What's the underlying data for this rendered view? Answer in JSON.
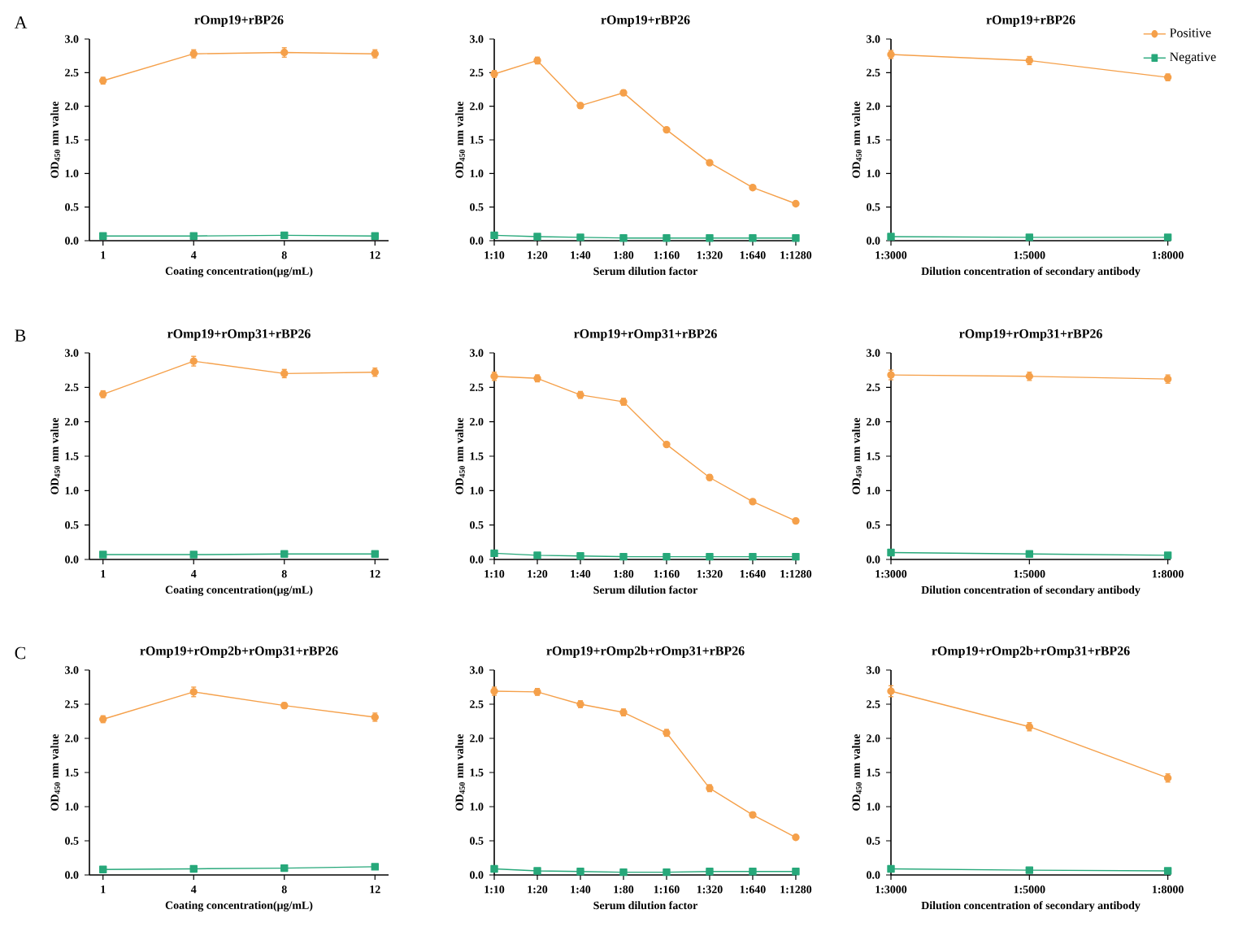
{
  "chart_data": [
    {
      "type": "line",
      "title": "rOmp19+rBP26",
      "xlabel": "Coating concentration(μg/mL)",
      "ylabel": "OD$_{450}$ nm value",
      "annotations": [
        "A"
      ],
      "categories": [
        "1",
        "4",
        "8",
        "12"
      ],
      "ylim": [
        0,
        3
      ],
      "yticks": [
        {
          "value": 0,
          "label": "0.0"
        },
        {
          "value": 0.5,
          "label": "0.5"
        },
        {
          "value": 1,
          "label": "1.0"
        },
        {
          "value": 1.5,
          "label": "1.5"
        },
        {
          "value": 2,
          "label": "2.0"
        },
        {
          "value": 2.5,
          "label": "2.5"
        },
        {
          "value": 3,
          "label": "3.0"
        }
      ],
      "series": [
        {
          "color": "#f5a04a",
          "marker": "circle",
          "values": [
            2.38,
            2.78,
            2.8,
            2.78
          ],
          "errors": [
            0.05,
            0.06,
            0.07,
            0.06
          ]
        },
        {
          "color": "#27a87a",
          "marker": "square",
          "values": [
            0.07,
            0.07,
            0.08,
            0.07
          ]
        }
      ]
    },
    {
      "type": "line",
      "title": "rOmp19+rBP26",
      "xlabel": "Serum dilution factor",
      "ylabel": "OD$_{450}$ nm value",
      "categories": [
        "1:10",
        "1:20",
        "1:40",
        "1:80",
        "1:160",
        "1:320",
        "1:640",
        "1:1280"
      ],
      "ylim": [
        0,
        3
      ],
      "yticks": [
        {
          "value": 0,
          "label": "0.0"
        },
        {
          "value": 0.5,
          "label": "0.5"
        },
        {
          "value": 1,
          "label": "1.0"
        },
        {
          "value": 1.5,
          "label": "1.5"
        },
        {
          "value": 2,
          "label": "2.0"
        },
        {
          "value": 2.5,
          "label": "2.5"
        },
        {
          "value": 3,
          "label": "3.0"
        }
      ],
      "series": [
        {
          "color": "#f5a04a",
          "marker": "circle",
          "values": [
            2.48,
            2.68,
            2.01,
            2.2,
            1.65,
            1.16,
            0.79,
            0.55
          ],
          "errors": [
            0.05,
            0.05,
            0.04,
            0.04,
            0.03,
            0.03,
            0.03,
            0.03
          ]
        },
        {
          "color": "#27a87a",
          "marker": "square",
          "values": [
            0.08,
            0.06,
            0.05,
            0.04,
            0.04,
            0.04,
            0.04,
            0.04
          ]
        }
      ]
    },
    {
      "type": "line",
      "title": "rOmp19+rBP26",
      "xlabel": "Dilution concentration of secondary antibody",
      "ylabel": "OD$_{450}$ nm value",
      "legend": "top right",
      "categories": [
        "1:3000",
        "1:5000",
        "1:8000"
      ],
      "ylim": [
        0,
        3
      ],
      "yticks": [
        {
          "value": 0,
          "label": "0.0"
        },
        {
          "value": 0.5,
          "label": "0.5"
        },
        {
          "value": 1,
          "label": "1.0"
        },
        {
          "value": 1.5,
          "label": "1.5"
        },
        {
          "value": 2,
          "label": "2.0"
        },
        {
          "value": 2.5,
          "label": "2.5"
        },
        {
          "value": 3,
          "label": "3.0"
        }
      ],
      "series": [
        {
          "name": "Positive",
          "color": "#f5a04a",
          "marker": "circle",
          "values": [
            2.77,
            2.68,
            2.43
          ],
          "errors": [
            0.06,
            0.06,
            0.05
          ]
        },
        {
          "name": "Negative",
          "color": "#27a87a",
          "marker": "square",
          "values": [
            0.06,
            0.05,
            0.05
          ]
        }
      ]
    },
    {
      "type": "line",
      "title": "rOmp19+rOmp31+rBP26",
      "xlabel": "Coating concentration(μg/mL)",
      "ylabel": "OD$_{450}$ nm value",
      "annotations": [
        "B"
      ],
      "categories": [
        "1",
        "4",
        "8",
        "12"
      ],
      "ylim": [
        0,
        3
      ],
      "yticks": [
        {
          "value": 0,
          "label": "0.0"
        },
        {
          "value": 0.5,
          "label": "0.5"
        },
        {
          "value": 1,
          "label": "1.0"
        },
        {
          "value": 1.5,
          "label": "1.5"
        },
        {
          "value": 2,
          "label": "2.0"
        },
        {
          "value": 2.5,
          "label": "2.5"
        },
        {
          "value": 3,
          "label": "3.0"
        }
      ],
      "series": [
        {
          "color": "#f5a04a",
          "marker": "circle",
          "values": [
            2.4,
            2.88,
            2.7,
            2.72
          ],
          "errors": [
            0.05,
            0.07,
            0.06,
            0.06
          ]
        },
        {
          "color": "#27a87a",
          "marker": "square",
          "values": [
            0.07,
            0.07,
            0.08,
            0.08
          ]
        }
      ]
    },
    {
      "type": "line",
      "title": "rOmp19+rOmp31+rBP26",
      "xlabel": "Serum dilution factor",
      "ylabel": "OD$_{450}$ nm value",
      "categories": [
        "1:10",
        "1:20",
        "1:40",
        "1:80",
        "1:160",
        "1:320",
        "1:640",
        "1:1280"
      ],
      "ylim": [
        0,
        3
      ],
      "yticks": [
        {
          "value": 0,
          "label": "0.0"
        },
        {
          "value": 0.5,
          "label": "0.5"
        },
        {
          "value": 1,
          "label": "1.0"
        },
        {
          "value": 1.5,
          "label": "1.5"
        },
        {
          "value": 2,
          "label": "2.0"
        },
        {
          "value": 2.5,
          "label": "2.5"
        },
        {
          "value": 3,
          "label": "3.0"
        }
      ],
      "series": [
        {
          "color": "#f5a04a",
          "marker": "circle",
          "values": [
            2.66,
            2.63,
            2.39,
            2.29,
            1.67,
            1.19,
            0.84,
            0.56
          ],
          "errors": [
            0.06,
            0.05,
            0.05,
            0.05,
            0.03,
            0.04,
            0.03,
            0.03
          ]
        },
        {
          "color": "#27a87a",
          "marker": "square",
          "values": [
            0.09,
            0.06,
            0.05,
            0.04,
            0.04,
            0.04,
            0.04,
            0.04
          ]
        }
      ]
    },
    {
      "type": "line",
      "title": "rOmp19+rOmp31+rBP26",
      "xlabel": "Dilution concentration of secondary antibody",
      "ylabel": "OD$_{450}$ nm value",
      "categories": [
        "1:3000",
        "1:5000",
        "1:8000"
      ],
      "ylim": [
        0,
        3
      ],
      "yticks": [
        {
          "value": 0,
          "label": "0.0"
        },
        {
          "value": 0.5,
          "label": "0.5"
        },
        {
          "value": 1,
          "label": "1.0"
        },
        {
          "value": 1.5,
          "label": "1.5"
        },
        {
          "value": 2,
          "label": "2.0"
        },
        {
          "value": 2.5,
          "label": "2.5"
        },
        {
          "value": 3,
          "label": "3.0"
        }
      ],
      "series": [
        {
          "color": "#f5a04a",
          "marker": "circle",
          "values": [
            2.68,
            2.66,
            2.62
          ],
          "errors": [
            0.07,
            0.06,
            0.06
          ]
        },
        {
          "color": "#27a87a",
          "marker": "square",
          "values": [
            0.1,
            0.08,
            0.06
          ]
        }
      ]
    },
    {
      "type": "line",
      "title": "rOmp19+rOmp2b+rOmp31+rBP26",
      "xlabel": "Coating concentration(μg/mL)",
      "ylabel": "OD$_{450}$ nm value",
      "annotations": [
        "C"
      ],
      "categories": [
        "1",
        "4",
        "8",
        "12"
      ],
      "ylim": [
        0,
        3
      ],
      "yticks": [
        {
          "value": 0,
          "label": "0.0"
        },
        {
          "value": 0.5,
          "label": "0.5"
        },
        {
          "value": 1,
          "label": "1.0"
        },
        {
          "value": 1.5,
          "label": "1.5"
        },
        {
          "value": 2,
          "label": "2.0"
        },
        {
          "value": 2.5,
          "label": "2.5"
        },
        {
          "value": 3,
          "label": "3.0"
        }
      ],
      "series": [
        {
          "color": "#f5a04a",
          "marker": "circle",
          "values": [
            2.28,
            2.68,
            2.48,
            2.31
          ],
          "errors": [
            0.05,
            0.07,
            0.04,
            0.06
          ]
        },
        {
          "color": "#27a87a",
          "marker": "square",
          "values": [
            0.08,
            0.09,
            0.1,
            0.12
          ]
        }
      ]
    },
    {
      "type": "line",
      "title": "rOmp19+rOmp2b+rOmp31+rBP26",
      "xlabel": "Serum dilution factor",
      "ylabel": "OD$_{450}$ nm value",
      "categories": [
        "1:10",
        "1:20",
        "1:40",
        "1:80",
        "1:160",
        "1:320",
        "1:640",
        "1:1280"
      ],
      "ylim": [
        0,
        3
      ],
      "yticks": [
        {
          "value": 0,
          "label": "0.0"
        },
        {
          "value": 0.5,
          "label": "0.5"
        },
        {
          "value": 1,
          "label": "1.0"
        },
        {
          "value": 1.5,
          "label": "1.5"
        },
        {
          "value": 2,
          "label": "2.0"
        },
        {
          "value": 2.5,
          "label": "2.5"
        },
        {
          "value": 3,
          "label": "3.0"
        }
      ],
      "series": [
        {
          "color": "#f5a04a",
          "marker": "circle",
          "values": [
            2.69,
            2.68,
            2.5,
            2.38,
            2.08,
            1.27,
            0.88,
            0.55
          ],
          "errors": [
            0.06,
            0.05,
            0.05,
            0.05,
            0.05,
            0.05,
            0.04,
            0.03
          ]
        },
        {
          "color": "#27a87a",
          "marker": "square",
          "values": [
            0.09,
            0.06,
            0.05,
            0.04,
            0.04,
            0.05,
            0.05,
            0.05
          ]
        }
      ]
    },
    {
      "type": "line",
      "title": "rOmp19+rOmp2b+rOmp31+rBP26",
      "xlabel": "Dilution concentration of secondary antibody",
      "ylabel": "OD$_{450}$ nm value",
      "categories": [
        "1:3000",
        "1:5000",
        "1:8000"
      ],
      "ylim": [
        0,
        3
      ],
      "yticks": [
        {
          "value": 0,
          "label": "0.0"
        },
        {
          "value": 0.5,
          "label": "0.5"
        },
        {
          "value": 1,
          "label": "1.0"
        },
        {
          "value": 1.5,
          "label": "1.5"
        },
        {
          "value": 2,
          "label": "2.0"
        },
        {
          "value": 2.5,
          "label": "2.5"
        },
        {
          "value": 3,
          "label": "3.0"
        }
      ],
      "series": [
        {
          "color": "#f5a04a",
          "marker": "circle",
          "values": [
            2.69,
            2.17,
            1.42
          ],
          "errors": [
            0.08,
            0.06,
            0.06
          ]
        },
        {
          "color": "#27a87a",
          "marker": "square",
          "values": [
            0.09,
            0.07,
            0.06
          ]
        }
      ]
    }
  ]
}
